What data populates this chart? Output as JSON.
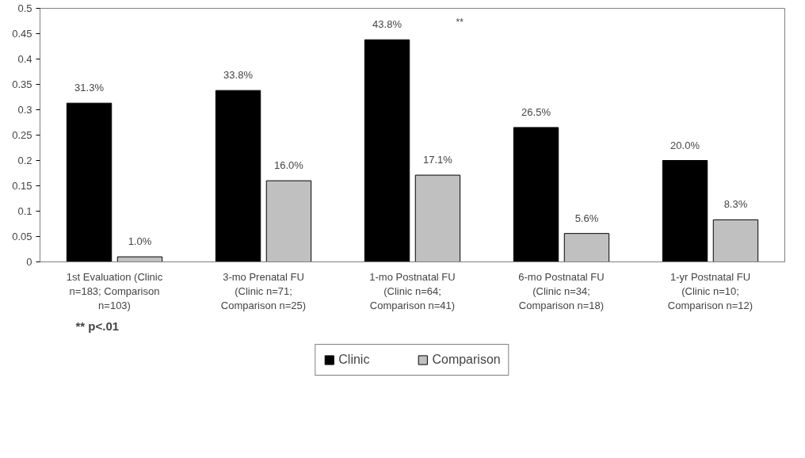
{
  "chart_data": {
    "type": "bar",
    "categories": [
      "1st Evaluation (Clinic n=183; Comparison n=103)",
      "3-mo Prenatal FU (Clinic n=71; Comparison n=25)",
      "1-mo Postnatal FU (Clinic n=64; Comparison n=41)",
      "6-mo Postnatal FU (Clinic n=34; Comparison n=18)",
      "1-yr Postnatal FU (Clinic n=10; Comparison n=12)"
    ],
    "series": [
      {
        "name": "Clinic",
        "color": "#000000",
        "values": [
          0.313,
          0.338,
          0.438,
          0.265,
          0.2
        ],
        "value_labels": [
          "31.3%",
          "33.8%",
          "43.8%",
          "26.5%",
          "20.0%"
        ]
      },
      {
        "name": "Comparison",
        "color": "#c0c0c0",
        "values": [
          0.01,
          0.16,
          0.171,
          0.056,
          0.083
        ],
        "value_labels": [
          "1.0%",
          "16.0%",
          "17.1%",
          "5.6%",
          "8.3%"
        ]
      }
    ],
    "ylim": [
      0,
      0.5
    ],
    "yticks": [
      0,
      0.05,
      0.1,
      0.15,
      0.2,
      0.25,
      0.3,
      0.35,
      0.4,
      0.45,
      0.5
    ],
    "grid": false,
    "legend": "bottom",
    "annotations": [
      "**",
      "** p<.01"
    ]
  }
}
